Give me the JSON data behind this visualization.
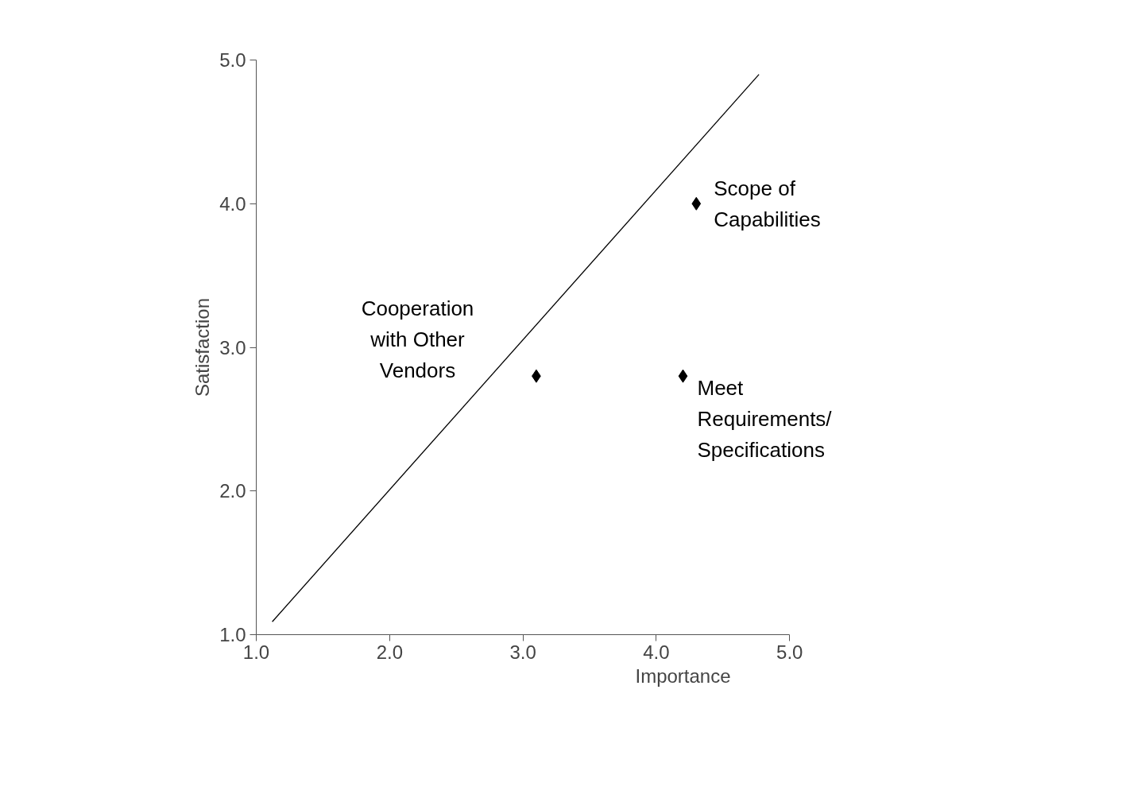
{
  "chart_data": {
    "type": "scatter",
    "xlabel": "Importance",
    "ylabel": "Satisfaction",
    "xlim": [
      1,
      5
    ],
    "ylim": [
      1,
      5
    ],
    "xticks": [
      {
        "value": 1,
        "label": "1.0"
      },
      {
        "value": 2,
        "label": "2.0"
      },
      {
        "value": 3,
        "label": "3.0"
      },
      {
        "value": 4,
        "label": "4.0"
      },
      {
        "value": 5,
        "label": "5.0"
      }
    ],
    "yticks": [
      {
        "value": 1,
        "label": "1.0"
      },
      {
        "value": 2,
        "label": "2.0"
      },
      {
        "value": 3,
        "label": "3.0"
      },
      {
        "value": 4,
        "label": "4.0"
      },
      {
        "value": 5,
        "label": "5.0"
      }
    ],
    "grid": false,
    "marker": "diamond",
    "series": [
      {
        "color": "#000000",
        "x": [
          3.1,
          4.2,
          4.3
        ],
        "values": [
          2.8,
          2.8,
          4.0
        ]
      },
      {
        "type": "line",
        "color": "#000000",
        "line_style": "solid",
        "marker": "none",
        "x": [
          1.12,
          4.77
        ],
        "values": [
          1.09,
          4.9
        ]
      }
    ],
    "annotations": [
      "Cooperation\nwith Other\nVendors",
      {
        "text": "Meet\nRequirements/\nSpecifications",
        "x": 4.2,
        "y": 2.8
      },
      {
        "text": "Scope of\nCapabilities",
        "x": 4.3,
        "y": 4.0
      }
    ]
  }
}
